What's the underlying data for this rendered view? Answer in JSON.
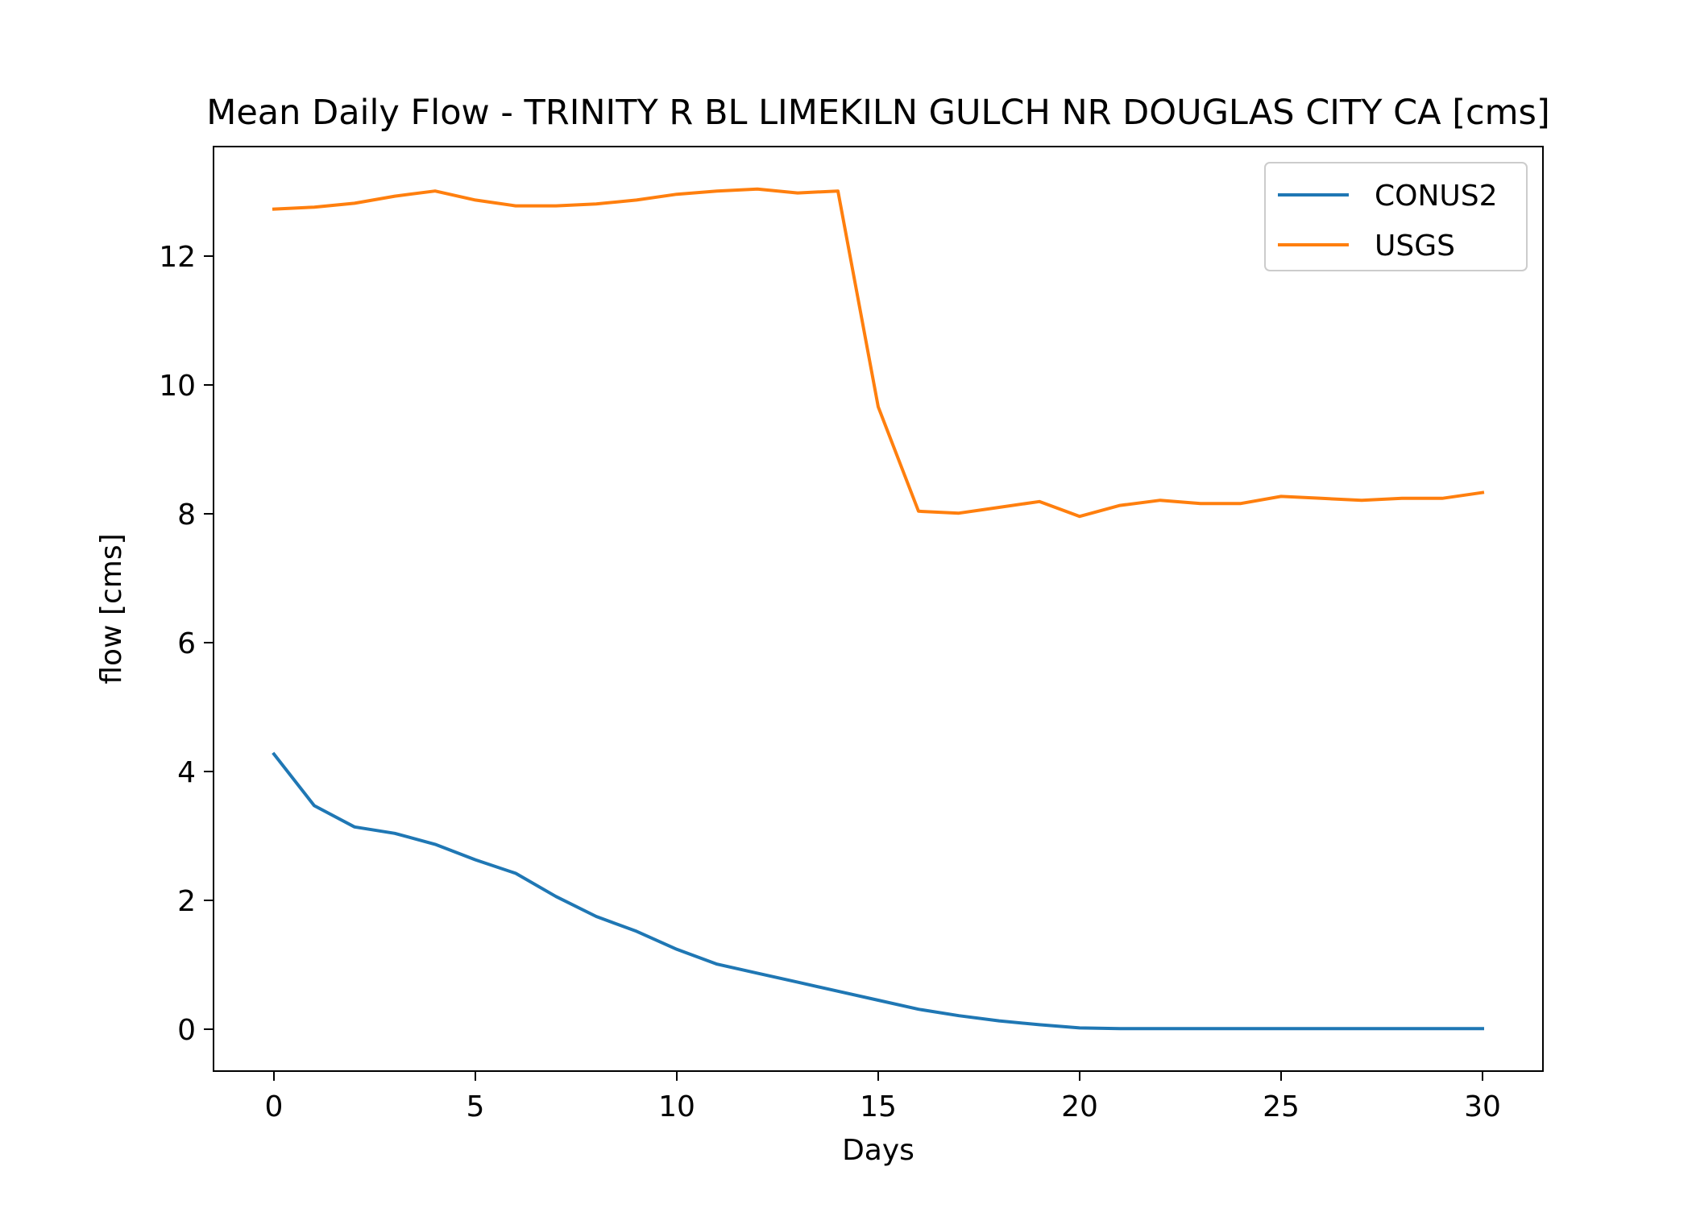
{
  "chart_data": {
    "type": "line",
    "title": "Mean Daily Flow - TRINITY R BL LIMEKILN GULCH NR DOUGLAS CITY CA [cms]",
    "xlabel": "Days",
    "ylabel": "flow [cms]",
    "xlim": [
      -1.5,
      31.5
    ],
    "ylim": [
      -0.65,
      13.7
    ],
    "xticks": [
      0,
      5,
      10,
      15,
      20,
      25,
      30
    ],
    "yticks": [
      0,
      2,
      4,
      6,
      8,
      10,
      12
    ],
    "grid": false,
    "legend_position": "top-right",
    "x": [
      0,
      1,
      2,
      3,
      4,
      5,
      6,
      7,
      8,
      9,
      10,
      11,
      12,
      13,
      14,
      15,
      16,
      17,
      18,
      19,
      20,
      21,
      22,
      23,
      24,
      25,
      26,
      27,
      28,
      29,
      30
    ],
    "series": [
      {
        "name": "CONUS2",
        "color": "#1f77b4",
        "values": [
          4.27,
          3.47,
          3.14,
          3.04,
          2.87,
          2.63,
          2.42,
          2.06,
          1.75,
          1.52,
          1.24,
          1.01,
          0.87,
          0.73,
          0.59,
          0.45,
          0.31,
          0.21,
          0.13,
          0.07,
          0.02,
          0.01,
          0.01,
          0.01,
          0.01,
          0.01,
          0.01,
          0.01,
          0.01,
          0.01,
          0.01
        ]
      },
      {
        "name": "USGS",
        "color": "#ff7f0e",
        "values": [
          12.73,
          12.76,
          12.82,
          12.93,
          13.01,
          12.87,
          12.78,
          12.78,
          12.81,
          12.87,
          12.96,
          13.01,
          13.04,
          12.98,
          13.01,
          9.66,
          8.04,
          8.01,
          8.1,
          8.19,
          7.96,
          8.13,
          8.21,
          8.16,
          8.16,
          8.27,
          8.24,
          8.21,
          8.24,
          8.24,
          8.33
        ]
      }
    ]
  }
}
